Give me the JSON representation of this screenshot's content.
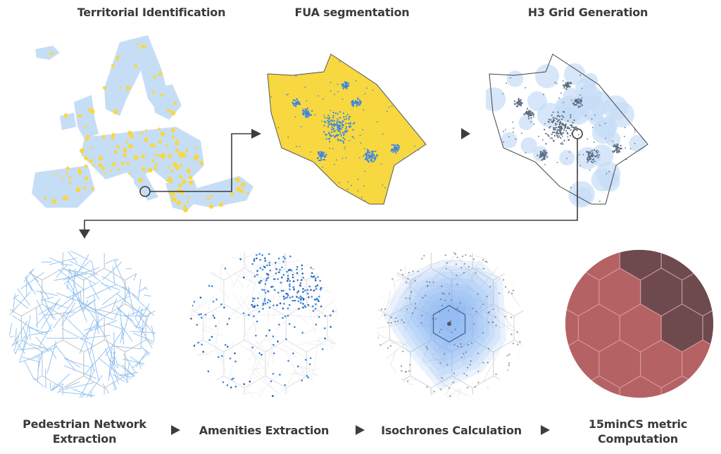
{
  "top_steps": [
    {
      "label": "Territorial Identification"
    },
    {
      "label": "FUA segmentation"
    },
    {
      "label": "H3 Grid Generation"
    }
  ],
  "bottom_steps": [
    {
      "label_line1": "Pedestrian Network",
      "label_line2": "Extraction"
    },
    {
      "label_line1": "Amenities Extraction",
      "label_line2": ""
    },
    {
      "label_line1": "Isochrones Calculation",
      "label_line2": ""
    },
    {
      "label_line1": "15minCS metric",
      "label_line2": "Computation"
    }
  ],
  "icons": {
    "flow_arrow": "right-triangle-arrow",
    "connector_marker": "circle-marker"
  },
  "colors": {
    "text": "#3a3a3a",
    "arrow": "#3d3d3d",
    "fua_yellow": "#f8d840",
    "urban_blue": "#3a86e0",
    "land_lightblue": "#c6ddf6",
    "hex_grid": "#c8c8c8",
    "street_blue": "#8ebff0",
    "urban_dark": "#5e6e82",
    "score_dark": "#6e4a4f",
    "score_red": "#b56264",
    "score_orange": "#d59a6c",
    "score_yellow": "#d4c96a"
  }
}
